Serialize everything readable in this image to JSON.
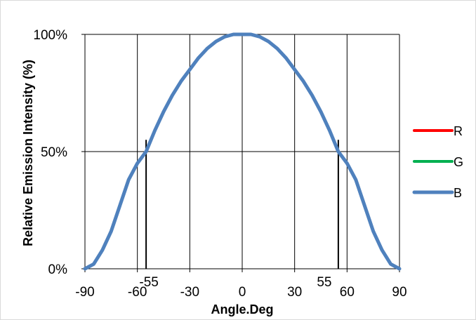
{
  "chart_data": {
    "type": "line",
    "title": "",
    "xlabel": "Angle.Deg",
    "ylabel": "Relative Emission Intensity (%)",
    "xlim": [
      -90,
      90
    ],
    "ylim": [
      0,
      100
    ],
    "x_ticks": [
      -90,
      -60,
      -30,
      0,
      30,
      60,
      90
    ],
    "x_tick_labels": [
      "-90",
      "-60",
      "-30",
      "0",
      "30",
      "60",
      "90"
    ],
    "y_ticks": [
      0,
      50,
      100
    ],
    "y_tick_labels": [
      "0%",
      "50%",
      "100%"
    ],
    "x_gridlines": [
      -90,
      -60,
      -30,
      0,
      30,
      60,
      90
    ],
    "y_gridlines": [
      0,
      50,
      100
    ],
    "grid": true,
    "legend": {
      "placement": "right",
      "entries": [
        {
          "name": "R",
          "color": "#ff0000"
        },
        {
          "name": "G",
          "color": "#00b050"
        },
        {
          "name": "B",
          "color": "#4f81bd"
        }
      ]
    },
    "x": [
      -90,
      -85,
      -80,
      -75,
      -70,
      -65,
      -60,
      -55,
      -50,
      -45,
      -40,
      -35,
      -30,
      -25,
      -20,
      -15,
      -10,
      -5,
      0,
      5,
      10,
      15,
      20,
      25,
      30,
      35,
      40,
      45,
      50,
      55,
      60,
      65,
      70,
      75,
      80,
      85,
      90
    ],
    "series": [
      {
        "name": "R",
        "color": "#ff0000",
        "values": [
          0,
          2,
          8,
          16,
          27,
          38,
          45,
          50,
          59,
          67,
          74,
          80,
          85,
          90,
          94,
          97,
          99,
          100,
          100,
          100,
          99,
          97,
          94,
          90,
          85,
          80,
          74,
          67,
          59,
          50,
          45,
          38,
          27,
          16,
          8,
          2,
          0
        ]
      },
      {
        "name": "G",
        "color": "#00b050",
        "values": [
          0,
          2,
          8,
          16,
          27,
          38,
          45,
          50,
          59,
          67,
          74,
          80,
          85,
          90,
          94,
          97,
          99,
          100,
          100,
          100,
          99,
          97,
          94,
          90,
          85,
          80,
          74,
          67,
          59,
          50,
          45,
          38,
          27,
          16,
          8,
          2,
          0
        ]
      },
      {
        "name": "B",
        "color": "#4f81bd",
        "values": [
          0,
          2,
          8,
          16,
          27,
          38,
          45,
          50,
          59,
          67,
          74,
          80,
          85,
          90,
          94,
          97,
          99,
          100,
          100,
          100,
          99,
          97,
          94,
          90,
          85,
          80,
          74,
          67,
          59,
          50,
          45,
          38,
          27,
          16,
          8,
          2,
          0
        ]
      }
    ],
    "annotations": [
      {
        "text": "-55",
        "x": -55,
        "marker_line_to_y": 55
      },
      {
        "text": "55",
        "x": 55,
        "marker_line_to_y": 55
      }
    ]
  }
}
